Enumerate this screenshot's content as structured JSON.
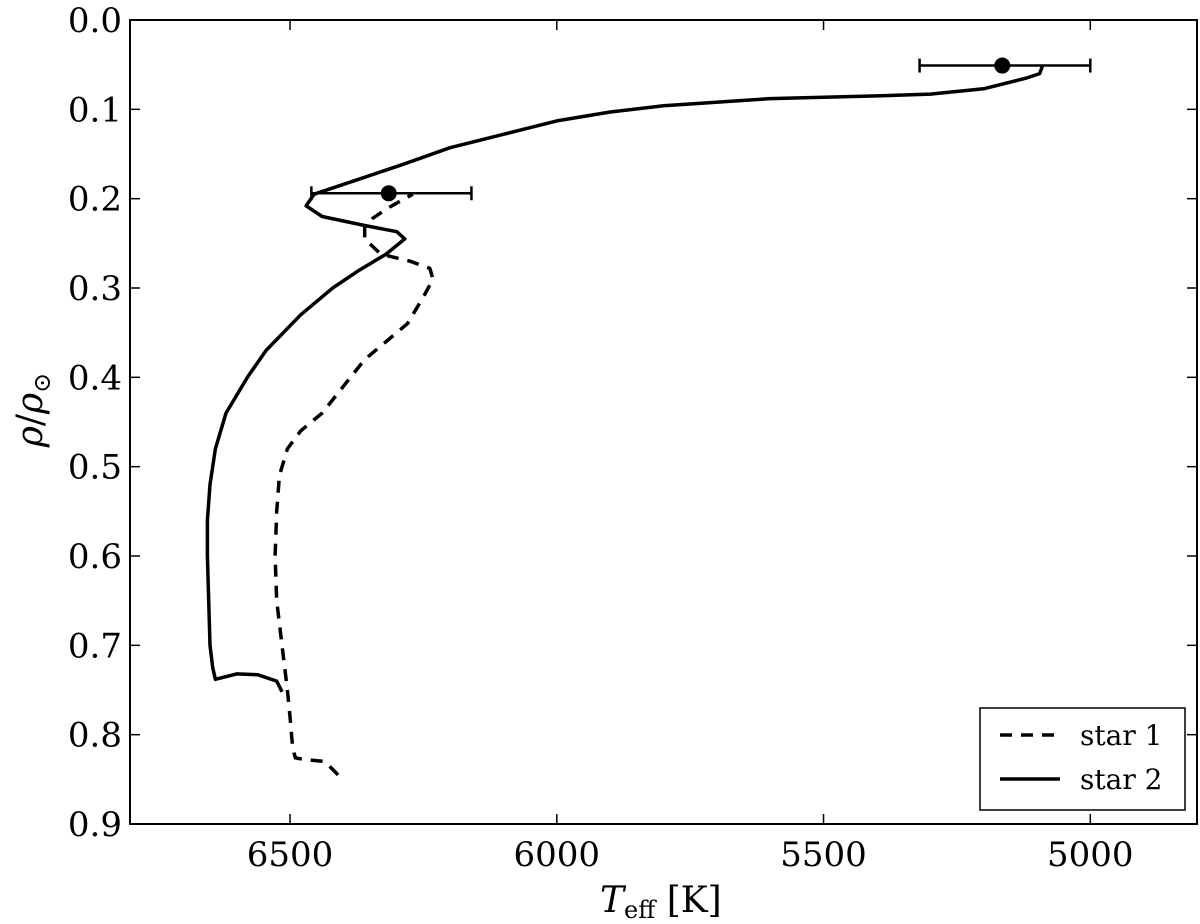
{
  "chart_data": {
    "type": "line",
    "xlabel": {
      "main": "T",
      "sub": "eff",
      "unit": " [K]"
    },
    "ylabel": {
      "num": "ρ",
      "sep": "/",
      "den": "ρ",
      "sub": "⊙"
    },
    "xlim": [
      6800,
      4800
    ],
    "ylim": [
      0.0,
      0.9
    ],
    "x_ticks": [
      6500,
      6000,
      5500,
      5000
    ],
    "x_tick_labels": [
      "6500",
      "6000",
      "5500",
      "5000"
    ],
    "y_ticks": [
      0.0,
      0.1,
      0.2,
      0.3,
      0.4,
      0.5,
      0.6,
      0.7,
      0.8,
      0.9
    ],
    "y_tick_labels": [
      "0.0",
      "0.1",
      "0.2",
      "0.3",
      "0.4",
      "0.5",
      "0.6",
      "0.7",
      "0.8",
      "0.9"
    ],
    "grid": false,
    "legend_position": "bottom-right",
    "series": [
      {
        "name": "star 1",
        "style": "dashed",
        "color": "#000000",
        "points": [
          [
            6410,
            0.845
          ],
          [
            6435,
            0.83
          ],
          [
            6470,
            0.828
          ],
          [
            6490,
            0.826
          ],
          [
            6495,
            0.815
          ],
          [
            6500,
            0.78
          ],
          [
            6505,
            0.75
          ],
          [
            6515,
            0.7
          ],
          [
            6525,
            0.65
          ],
          [
            6528,
            0.6
          ],
          [
            6525,
            0.55
          ],
          [
            6520,
            0.51
          ],
          [
            6505,
            0.48
          ],
          [
            6480,
            0.46
          ],
          [
            6440,
            0.44
          ],
          [
            6400,
            0.41
          ],
          [
            6360,
            0.38
          ],
          [
            6320,
            0.36
          ],
          [
            6280,
            0.34
          ],
          [
            6250,
            0.31
          ],
          [
            6232,
            0.29
          ],
          [
            6238,
            0.278
          ],
          [
            6275,
            0.27
          ],
          [
            6330,
            0.262
          ],
          [
            6360,
            0.245
          ],
          [
            6360,
            0.232
          ],
          [
            6345,
            0.222
          ],
          [
            6315,
            0.21
          ],
          [
            6270,
            0.195
          ]
        ]
      },
      {
        "name": "star 2",
        "style": "solid",
        "color": "#000000",
        "points": [
          [
            6515,
            0.752
          ],
          [
            6525,
            0.74
          ],
          [
            6560,
            0.733
          ],
          [
            6600,
            0.732
          ],
          [
            6640,
            0.738
          ],
          [
            6645,
            0.725
          ],
          [
            6650,
            0.7
          ],
          [
            6655,
            0.6
          ],
          [
            6655,
            0.56
          ],
          [
            6650,
            0.52
          ],
          [
            6640,
            0.48
          ],
          [
            6620,
            0.44
          ],
          [
            6580,
            0.4
          ],
          [
            6545,
            0.37
          ],
          [
            6480,
            0.33
          ],
          [
            6420,
            0.3
          ],
          [
            6370,
            0.28
          ],
          [
            6320,
            0.262
          ],
          [
            6285,
            0.245
          ],
          [
            6300,
            0.237
          ],
          [
            6360,
            0.23
          ],
          [
            6440,
            0.22
          ],
          [
            6470,
            0.208
          ],
          [
            6455,
            0.195
          ],
          [
            6380,
            0.18
          ],
          [
            6290,
            0.162
          ],
          [
            6200,
            0.143
          ],
          [
            6100,
            0.128
          ],
          [
            6000,
            0.113
          ],
          [
            5900,
            0.103
          ],
          [
            5800,
            0.096
          ],
          [
            5600,
            0.088
          ],
          [
            5400,
            0.085
          ],
          [
            5300,
            0.083
          ],
          [
            5200,
            0.077
          ],
          [
            5120,
            0.065
          ],
          [
            5095,
            0.06
          ],
          [
            5090,
            0.052
          ]
        ]
      }
    ],
    "error_points": [
      {
        "x": 6315,
        "y": 0.194,
        "xerr_low": 6460,
        "xerr_high": 6160
      },
      {
        "x": 5165,
        "y": 0.051,
        "xerr_low": 5320,
        "xerr_high": 5000
      }
    ]
  }
}
